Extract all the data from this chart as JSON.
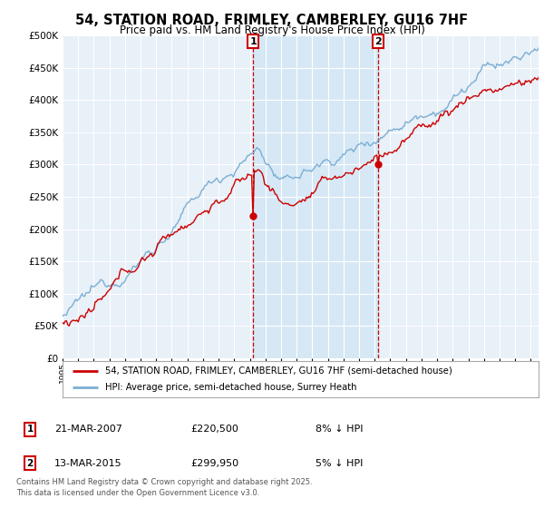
{
  "title": "54, STATION ROAD, FRIMLEY, CAMBERLEY, GU16 7HF",
  "subtitle": "Price paid vs. HM Land Registry's House Price Index (HPI)",
  "ylim": [
    0,
    500000
  ],
  "xlim_start": 1995.0,
  "xlim_end": 2025.5,
  "purchase1_date": 2007.22,
  "purchase1_price": 220500,
  "purchase2_date": 2015.2,
  "purchase2_price": 299950,
  "legend_red": "54, STATION ROAD, FRIMLEY, CAMBERLEY, GU16 7HF (semi-detached house)",
  "legend_blue": "HPI: Average price, semi-detached house, Surrey Heath",
  "table_row1": [
    "1",
    "21-MAR-2007",
    "£220,500",
    "8% ↓ HPI"
  ],
  "table_row2": [
    "2",
    "13-MAR-2015",
    "£299,950",
    "5% ↓ HPI"
  ],
  "footnote": "Contains HM Land Registry data © Crown copyright and database right 2025.\nThis data is licensed under the Open Government Licence v3.0.",
  "red_color": "#cc0000",
  "blue_color": "#7bafd4",
  "shade_color": "#d6e8f5",
  "plot_bg_color": "#e8f0f8",
  "grid_color": "#ffffff",
  "vline_color": "#cc0000"
}
